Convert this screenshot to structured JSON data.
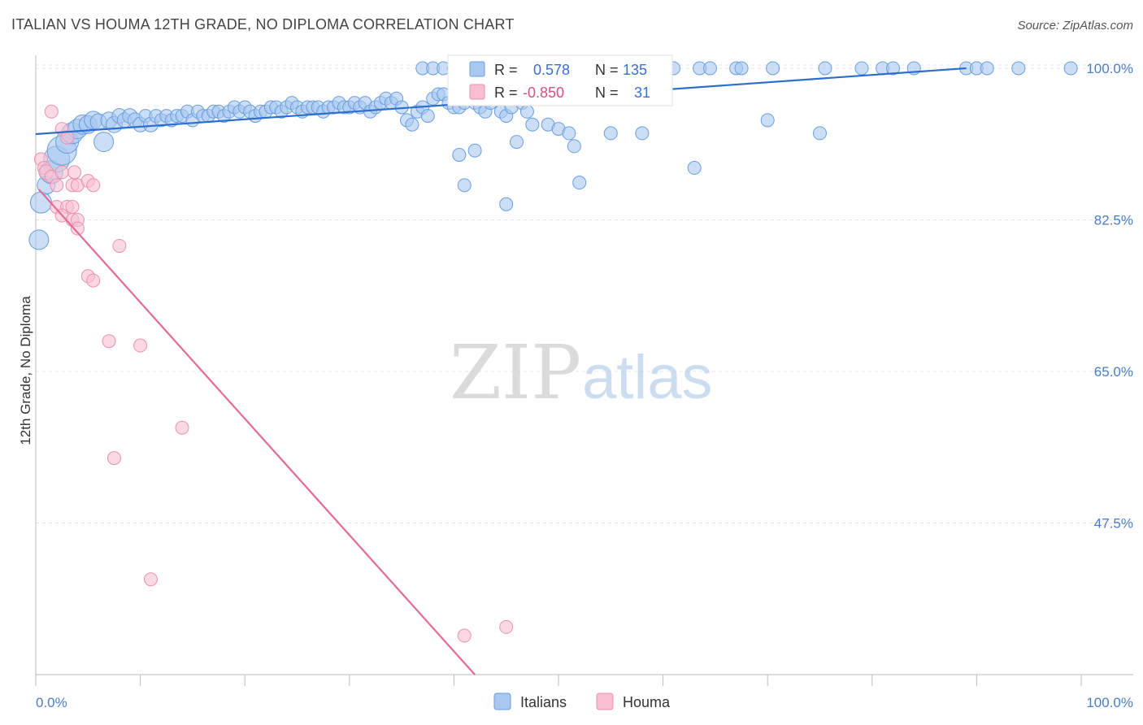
{
  "header": {
    "title": "ITALIAN VS HOUMA 12TH GRADE, NO DIPLOMA CORRELATION CHART",
    "source": "Source: ZipAtlas.com"
  },
  "watermark": {
    "part1": "ZIP",
    "part2": "atlas"
  },
  "stats": {
    "r_label": "R =",
    "n_label": "N =",
    "italians": {
      "r": "0.578",
      "n": "135"
    },
    "houma": {
      "r": "-0.850",
      "n": "31"
    }
  },
  "colors": {
    "italians_fill": "#a8c8f0",
    "italians_stroke": "#6a9ee0",
    "italians_line": "#2c6fcb",
    "houma_fill": "#f8bfd2",
    "houma_stroke": "#ec8fb0",
    "houma_line": "#e26a98",
    "tick_text": "#4a7cc7",
    "grid": "#e6e6e6"
  },
  "chart_data": {
    "type": "scatter",
    "title": "ITALIAN VS HOUMA 12TH GRADE, NO DIPLOMA CORRELATION CHART",
    "xlabel": "",
    "ylabel": "12th Grade, No Diploma",
    "xlim": [
      0,
      100
    ],
    "ylim": [
      30,
      101.5
    ],
    "x_tick_labels": [
      "0.0%",
      "100.0%"
    ],
    "y_ticks": [
      47.5,
      65.0,
      82.5,
      100.0
    ],
    "y_tick_labels": [
      "47.5%",
      "65.0%",
      "82.5%",
      "100.0%"
    ],
    "grid": true,
    "legend_position": "bottom-center",
    "series": [
      {
        "name": "Italians",
        "trend": {
          "x": [
            0,
            89
          ],
          "y": [
            92.4,
            100.0
          ]
        },
        "points": [
          {
            "x": 0.3,
            "y": 80.2,
            "s": 12
          },
          {
            "x": 0.5,
            "y": 84.5,
            "s": 13
          },
          {
            "x": 1,
            "y": 86.5,
            "s": 11
          },
          {
            "x": 1.5,
            "y": 88,
            "s": 14
          },
          {
            "x": 2,
            "y": 89.5,
            "s": 16
          },
          {
            "x": 2.5,
            "y": 90.5,
            "s": 18
          },
          {
            "x": 3,
            "y": 91.5,
            "s": 14
          },
          {
            "x": 3.5,
            "y": 92.5,
            "s": 13
          },
          {
            "x": 4,
            "y": 93,
            "s": 12
          },
          {
            "x": 4.5,
            "y": 93.5,
            "s": 12
          },
          {
            "x": 5,
            "y": 93.5,
            "s": 11
          },
          {
            "x": 5.5,
            "y": 94,
            "s": 11
          },
          {
            "x": 6,
            "y": 93.8,
            "s": 10
          },
          {
            "x": 6.5,
            "y": 91.5,
            "s": 12
          },
          {
            "x": 7,
            "y": 94,
            "s": 10
          },
          {
            "x": 7.5,
            "y": 93.5,
            "s": 10
          },
          {
            "x": 8,
            "y": 94.5,
            "s": 9
          },
          {
            "x": 8.5,
            "y": 94,
            "s": 9
          },
          {
            "x": 9,
            "y": 94.5,
            "s": 9
          },
          {
            "x": 9.5,
            "y": 94,
            "s": 9
          },
          {
            "x": 10,
            "y": 93.5,
            "s": 9
          },
          {
            "x": 10.5,
            "y": 94.5,
            "s": 8
          },
          {
            "x": 11,
            "y": 93.5,
            "s": 9
          },
          {
            "x": 11.5,
            "y": 94.5,
            "s": 8
          },
          {
            "x": 12,
            "y": 94,
            "s": 8
          },
          {
            "x": 12.5,
            "y": 94.5,
            "s": 8
          },
          {
            "x": 13,
            "y": 94,
            "s": 8
          },
          {
            "x": 13.5,
            "y": 94.5,
            "s": 8
          },
          {
            "x": 14,
            "y": 94.5,
            "s": 8
          },
          {
            "x": 14.5,
            "y": 95,
            "s": 8
          },
          {
            "x": 15,
            "y": 94,
            "s": 8
          },
          {
            "x": 15.5,
            "y": 95,
            "s": 8
          },
          {
            "x": 16,
            "y": 94.5,
            "s": 8
          },
          {
            "x": 16.5,
            "y": 94.5,
            "s": 8
          },
          {
            "x": 17,
            "y": 95,
            "s": 8
          },
          {
            "x": 17.5,
            "y": 95,
            "s": 8
          },
          {
            "x": 18,
            "y": 94.5,
            "s": 8
          },
          {
            "x": 18.5,
            "y": 95,
            "s": 8
          },
          {
            "x": 19,
            "y": 95.5,
            "s": 8
          },
          {
            "x": 19.5,
            "y": 95,
            "s": 8
          },
          {
            "x": 20,
            "y": 95.5,
            "s": 8
          },
          {
            "x": 20.5,
            "y": 95,
            "s": 8
          },
          {
            "x": 21,
            "y": 94.5,
            "s": 8
          },
          {
            "x": 21.5,
            "y": 95,
            "s": 8
          },
          {
            "x": 22,
            "y": 95,
            "s": 8
          },
          {
            "x": 22.5,
            "y": 95.5,
            "s": 8
          },
          {
            "x": 23,
            "y": 95.5,
            "s": 8
          },
          {
            "x": 23.5,
            "y": 95,
            "s": 8
          },
          {
            "x": 24,
            "y": 95.5,
            "s": 8
          },
          {
            "x": 24.5,
            "y": 96,
            "s": 8
          },
          {
            "x": 25,
            "y": 95.5,
            "s": 8
          },
          {
            "x": 25.5,
            "y": 95,
            "s": 8
          },
          {
            "x": 26,
            "y": 95.5,
            "s": 8
          },
          {
            "x": 26.5,
            "y": 95.5,
            "s": 8
          },
          {
            "x": 27,
            "y": 95.5,
            "s": 8
          },
          {
            "x": 27.5,
            "y": 95,
            "s": 8
          },
          {
            "x": 28,
            "y": 95.5,
            "s": 8
          },
          {
            "x": 28.5,
            "y": 95.5,
            "s": 8
          },
          {
            "x": 29,
            "y": 96,
            "s": 8
          },
          {
            "x": 29.5,
            "y": 95.5,
            "s": 8
          },
          {
            "x": 30,
            "y": 95.5,
            "s": 8
          },
          {
            "x": 30.5,
            "y": 96,
            "s": 8
          },
          {
            "x": 31,
            "y": 95.5,
            "s": 8
          },
          {
            "x": 31.5,
            "y": 96,
            "s": 8
          },
          {
            "x": 32,
            "y": 95,
            "s": 8
          },
          {
            "x": 32.5,
            "y": 95.5,
            "s": 8
          },
          {
            "x": 33,
            "y": 96,
            "s": 8
          },
          {
            "x": 33.5,
            "y": 96.5,
            "s": 8
          },
          {
            "x": 34,
            "y": 96,
            "s": 8
          },
          {
            "x": 34.5,
            "y": 96.5,
            "s": 8
          },
          {
            "x": 35,
            "y": 95.5,
            "s": 8
          },
          {
            "x": 35.5,
            "y": 94,
            "s": 8
          },
          {
            "x": 36,
            "y": 93.5,
            "s": 8
          },
          {
            "x": 36.5,
            "y": 95,
            "s": 8
          },
          {
            "x": 37,
            "y": 95.5,
            "s": 8
          },
          {
            "x": 37.5,
            "y": 94.5,
            "s": 8
          },
          {
            "x": 38,
            "y": 96.5,
            "s": 8
          },
          {
            "x": 38.5,
            "y": 97,
            "s": 8
          },
          {
            "x": 39,
            "y": 97,
            "s": 8
          },
          {
            "x": 39.5,
            "y": 96,
            "s": 8
          },
          {
            "x": 40,
            "y": 95.5,
            "s": 8
          },
          {
            "x": 40.5,
            "y": 95.5,
            "s": 8
          },
          {
            "x": 41,
            "y": 96,
            "s": 8
          },
          {
            "x": 41.5,
            "y": 96.5,
            "s": 8
          },
          {
            "x": 42,
            "y": 96,
            "s": 8
          },
          {
            "x": 42.5,
            "y": 95.5,
            "s": 8
          },
          {
            "x": 43,
            "y": 95,
            "s": 8
          },
          {
            "x": 43.5,
            "y": 96,
            "s": 8
          },
          {
            "x": 44,
            "y": 96.5,
            "s": 8
          },
          {
            "x": 44.5,
            "y": 95,
            "s": 8
          },
          {
            "x": 45,
            "y": 94.5,
            "s": 8
          },
          {
            "x": 45.5,
            "y": 95.5,
            "s": 8
          },
          {
            "x": 46,
            "y": 96.5,
            "s": 8
          },
          {
            "x": 46.5,
            "y": 96,
            "s": 8
          },
          {
            "x": 47,
            "y": 95,
            "s": 8
          },
          {
            "x": 47.5,
            "y": 93.5,
            "s": 8
          },
          {
            "x": 49,
            "y": 93.5,
            "s": 8
          },
          {
            "x": 50,
            "y": 93,
            "s": 8
          },
          {
            "x": 51,
            "y": 92.5,
            "s": 8
          },
          {
            "x": 55,
            "y": 92.5,
            "s": 8
          },
          {
            "x": 58,
            "y": 92.5,
            "s": 8
          },
          {
            "x": 70,
            "y": 94,
            "s": 8
          },
          {
            "x": 75,
            "y": 92.5,
            "s": 8
          },
          {
            "x": 40.5,
            "y": 90,
            "s": 8
          },
          {
            "x": 42,
            "y": 90.5,
            "s": 8
          },
          {
            "x": 46,
            "y": 91.5,
            "s": 8
          },
          {
            "x": 51.5,
            "y": 91,
            "s": 8
          },
          {
            "x": 63,
            "y": 88.5,
            "s": 8
          },
          {
            "x": 41,
            "y": 86.5,
            "s": 8
          },
          {
            "x": 45,
            "y": 84.3,
            "s": 8
          },
          {
            "x": 52,
            "y": 86.8,
            "s": 8
          },
          {
            "x": 37,
            "y": 100,
            "s": 8
          },
          {
            "x": 38,
            "y": 100,
            "s": 8
          },
          {
            "x": 39,
            "y": 100,
            "s": 8
          },
          {
            "x": 40,
            "y": 100,
            "s": 8
          },
          {
            "x": 52,
            "y": 100,
            "s": 8
          },
          {
            "x": 53.5,
            "y": 100,
            "s": 8
          },
          {
            "x": 56,
            "y": 100,
            "s": 8
          },
          {
            "x": 57,
            "y": 100,
            "s": 8
          },
          {
            "x": 61,
            "y": 100,
            "s": 8
          },
          {
            "x": 63.5,
            "y": 100,
            "s": 8
          },
          {
            "x": 64.5,
            "y": 100,
            "s": 8
          },
          {
            "x": 67,
            "y": 100,
            "s": 8
          },
          {
            "x": 67.5,
            "y": 100,
            "s": 8
          },
          {
            "x": 70.5,
            "y": 100,
            "s": 8
          },
          {
            "x": 75.5,
            "y": 100,
            "s": 8
          },
          {
            "x": 79,
            "y": 100,
            "s": 8
          },
          {
            "x": 81,
            "y": 100,
            "s": 8
          },
          {
            "x": 82,
            "y": 100,
            "s": 8
          },
          {
            "x": 84,
            "y": 100,
            "s": 8
          },
          {
            "x": 89,
            "y": 100,
            "s": 8
          },
          {
            "x": 90,
            "y": 100,
            "s": 8
          },
          {
            "x": 91,
            "y": 100,
            "s": 8
          },
          {
            "x": 94,
            "y": 100,
            "s": 8
          },
          {
            "x": 99,
            "y": 100,
            "s": 8
          }
        ]
      },
      {
        "name": "Houma",
        "trend": {
          "x": [
            0.3,
            42
          ],
          "y": [
            86.0,
            30.0
          ]
        },
        "points": [
          {
            "x": 0.5,
            "y": 89.5,
            "s": 8
          },
          {
            "x": 0.8,
            "y": 88.5,
            "s": 8
          },
          {
            "x": 1,
            "y": 88,
            "s": 9
          },
          {
            "x": 1.5,
            "y": 87.5,
            "s": 8
          },
          {
            "x": 2,
            "y": 86.5,
            "s": 8
          },
          {
            "x": 1.5,
            "y": 95,
            "s": 8
          },
          {
            "x": 2.5,
            "y": 93,
            "s": 8
          },
          {
            "x": 3,
            "y": 92,
            "s": 8
          },
          {
            "x": 2.5,
            "y": 88,
            "s": 8
          },
          {
            "x": 3.5,
            "y": 86.5,
            "s": 8
          },
          {
            "x": 4,
            "y": 86.5,
            "s": 8
          },
          {
            "x": 3.7,
            "y": 88,
            "s": 8
          },
          {
            "x": 5,
            "y": 87,
            "s": 8
          },
          {
            "x": 5.5,
            "y": 86.5,
            "s": 8
          },
          {
            "x": 2,
            "y": 84,
            "s": 8
          },
          {
            "x": 3,
            "y": 84,
            "s": 8
          },
          {
            "x": 3.5,
            "y": 84,
            "s": 8
          },
          {
            "x": 2.5,
            "y": 83,
            "s": 8
          },
          {
            "x": 3.5,
            "y": 82.5,
            "s": 8
          },
          {
            "x": 4,
            "y": 82.5,
            "s": 8
          },
          {
            "x": 4,
            "y": 81.5,
            "s": 8
          },
          {
            "x": 8,
            "y": 79.5,
            "s": 8
          },
          {
            "x": 5,
            "y": 76,
            "s": 8
          },
          {
            "x": 5.5,
            "y": 75.5,
            "s": 8
          },
          {
            "x": 7,
            "y": 68.5,
            "s": 8
          },
          {
            "x": 10,
            "y": 68,
            "s": 8
          },
          {
            "x": 14,
            "y": 58.5,
            "s": 8
          },
          {
            "x": 7.5,
            "y": 55,
            "s": 8
          },
          {
            "x": 11,
            "y": 41,
            "s": 8
          },
          {
            "x": 41,
            "y": 34.5,
            "s": 8
          },
          {
            "x": 45,
            "y": 35.5,
            "s": 8
          }
        ]
      }
    ]
  },
  "legend": {
    "italians": "Italians",
    "houma": "Houma"
  }
}
